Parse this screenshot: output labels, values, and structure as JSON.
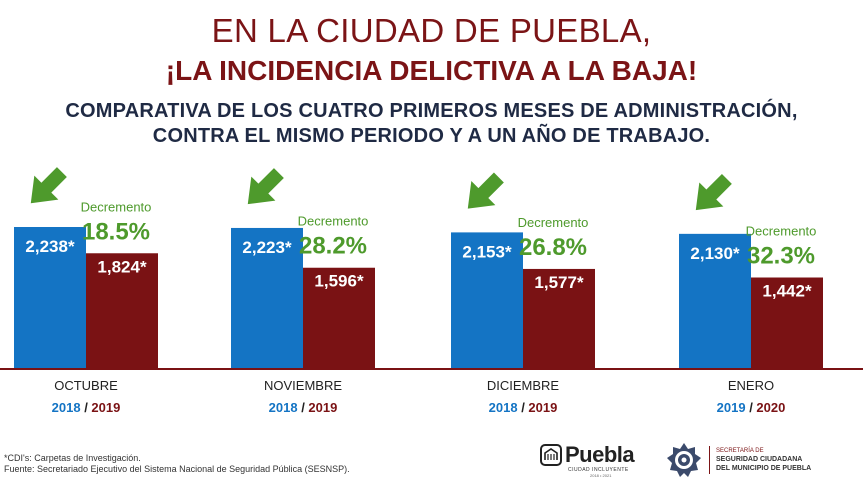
{
  "header": {
    "title_line1": "EN LA CIUDAD DE PUEBLA,",
    "title_line2": "¡LA INCIDENCIA DELICTIVA A LA BAJA!",
    "subtitle_line1": "COMPARATIVA DE LOS CUATRO PRIMEROS MESES DE ADMINISTRACIÓN,",
    "subtitle_line2": "CONTRA EL MISMO PERIODO Y A UN AÑO DE TRABAJO."
  },
  "colors": {
    "blue": "#1474c4",
    "maroon": "#7a1214",
    "green": "#4e9a2c",
    "title_red": "#7b1416",
    "navy": "#1f2a44"
  },
  "chart_data": {
    "type": "bar",
    "categories": [
      "OCTUBRE",
      "NOVIEMBRE",
      "DICIEMBRE",
      "ENERO"
    ],
    "period_labels": [
      [
        "2018",
        "2019"
      ],
      [
        "2018",
        "2019"
      ],
      [
        "2018",
        "2019"
      ],
      [
        "2019",
        "2020"
      ]
    ],
    "series": [
      {
        "values": [
          2238,
          2223,
          2153,
          2130
        ],
        "labels": [
          "2,238*",
          "2,223*",
          "2,153*",
          "2,130*"
        ],
        "color": "#1474c4"
      },
      {
        "values": [
          1824,
          1596,
          1577,
          1442
        ],
        "labels": [
          "1,824*",
          "1,596*",
          "1,577*",
          "1,442*"
        ],
        "color": "#7a1214"
      }
    ],
    "decrement_label": "Decremento",
    "decrements": [
      "18.5%",
      "28.2%",
      "26.8%",
      "32.3%"
    ],
    "separator": "/",
    "ylim": [
      0,
      2500
    ],
    "grid": false
  },
  "footer": {
    "note": "*CDI's: Carpetas de Investigación.",
    "source": "Fuente: Secretariado Ejecutivo del Sistema Nacional de Seguridad Pública (SESNSP)."
  },
  "logos": {
    "puebla_word": "Puebla",
    "puebla_tag": "CIUDAD INCLUYENTE",
    "puebla_years": "2018 • 2021",
    "secretaria_line1": "SECRETARÍA DE",
    "secretaria_line2": "SEGURIDAD CIUDADANA",
    "secretaria_line3": "DEL MUNICIPIO DE PUEBLA"
  }
}
